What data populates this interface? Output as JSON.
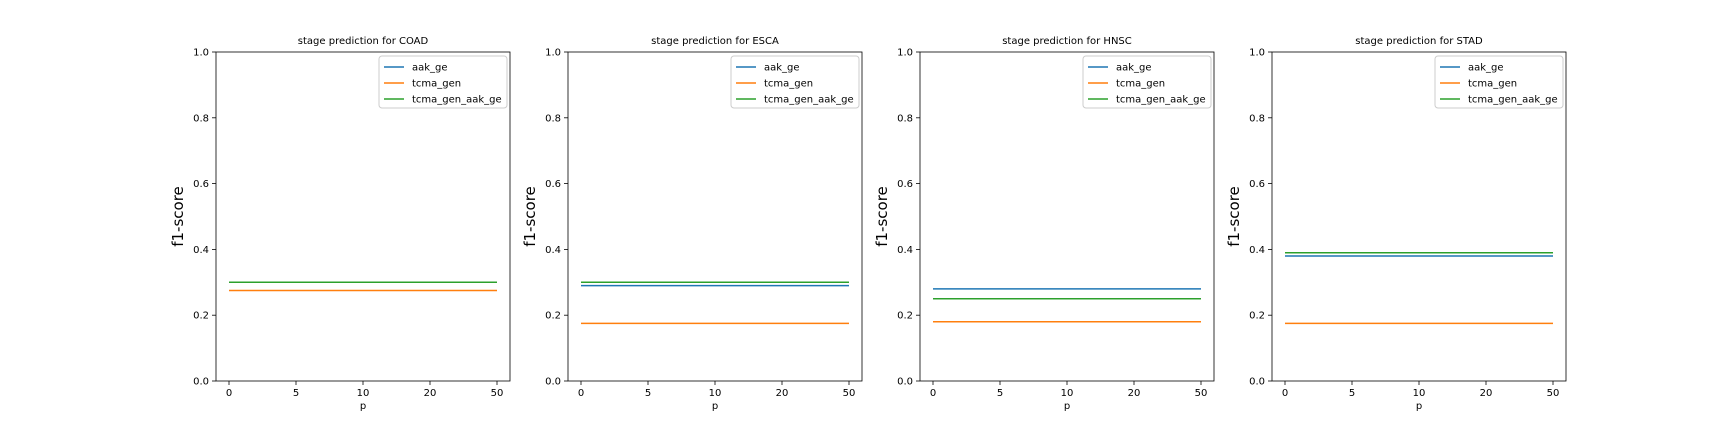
{
  "chart_data": [
    {
      "type": "line",
      "title": "stage prediction for COAD",
      "xlabel": "p",
      "ylabel": "f1-score",
      "x_ticks": [
        "0",
        "5",
        "10",
        "20",
        "50"
      ],
      "y_ticks": [
        "0.0",
        "0.2",
        "0.4",
        "0.6",
        "0.8",
        "1.0"
      ],
      "ylim": [
        0,
        1
      ],
      "grid": false,
      "legend": "top-right",
      "series": [
        {
          "name": "aak_ge",
          "color": "#1f77b4",
          "values": [
            0.3,
            0.3,
            0.3,
            0.3,
            0.3
          ]
        },
        {
          "name": "tcma_gen",
          "color": "#ff7f0e",
          "values": [
            0.275,
            0.275,
            0.275,
            0.275,
            0.275
          ]
        },
        {
          "name": "tcma_gen_aak_ge",
          "color": "#2ca02c",
          "values": [
            0.3,
            0.3,
            0.3,
            0.3,
            0.3
          ]
        }
      ]
    },
    {
      "type": "line",
      "title": "stage prediction for ESCA",
      "xlabel": "p",
      "ylabel": "f1-score",
      "x_ticks": [
        "0",
        "5",
        "10",
        "20",
        "50"
      ],
      "y_ticks": [
        "0.0",
        "0.2",
        "0.4",
        "0.6",
        "0.8",
        "1.0"
      ],
      "ylim": [
        0,
        1
      ],
      "grid": false,
      "legend": "top-right",
      "series": [
        {
          "name": "aak_ge",
          "color": "#1f77b4",
          "values": [
            0.29,
            0.29,
            0.29,
            0.29,
            0.29
          ]
        },
        {
          "name": "tcma_gen",
          "color": "#ff7f0e",
          "values": [
            0.175,
            0.175,
            0.175,
            0.175,
            0.175
          ]
        },
        {
          "name": "tcma_gen_aak_ge",
          "color": "#2ca02c",
          "values": [
            0.3,
            0.3,
            0.3,
            0.3,
            0.3
          ]
        }
      ]
    },
    {
      "type": "line",
      "title": "stage prediction for HNSC",
      "xlabel": "p",
      "ylabel": "f1-score",
      "x_ticks": [
        "0",
        "5",
        "10",
        "20",
        "50"
      ],
      "y_ticks": [
        "0.0",
        "0.2",
        "0.4",
        "0.6",
        "0.8",
        "1.0"
      ],
      "ylim": [
        0,
        1
      ],
      "grid": false,
      "legend": "top-right",
      "series": [
        {
          "name": "aak_ge",
          "color": "#1f77b4",
          "values": [
            0.28,
            0.28,
            0.28,
            0.28,
            0.28
          ]
        },
        {
          "name": "tcma_gen",
          "color": "#ff7f0e",
          "values": [
            0.18,
            0.18,
            0.18,
            0.18,
            0.18
          ]
        },
        {
          "name": "tcma_gen_aak_ge",
          "color": "#2ca02c",
          "values": [
            0.25,
            0.25,
            0.25,
            0.25,
            0.25
          ]
        }
      ]
    },
    {
      "type": "line",
      "title": "stage prediction for STAD",
      "xlabel": "p",
      "ylabel": "f1-score",
      "x_ticks": [
        "0",
        "5",
        "10",
        "20",
        "50"
      ],
      "y_ticks": [
        "0.0",
        "0.2",
        "0.4",
        "0.6",
        "0.8",
        "1.0"
      ],
      "ylim": [
        0,
        1
      ],
      "grid": false,
      "legend": "top-right",
      "series": [
        {
          "name": "aak_ge",
          "color": "#1f77b4",
          "values": [
            0.38,
            0.38,
            0.38,
            0.38,
            0.38
          ]
        },
        {
          "name": "tcma_gen",
          "color": "#ff7f0e",
          "values": [
            0.175,
            0.175,
            0.175,
            0.175,
            0.175
          ]
        },
        {
          "name": "tcma_gen_aak_ge",
          "color": "#2ca02c",
          "values": [
            0.39,
            0.39,
            0.39,
            0.39,
            0.39
          ]
        }
      ]
    }
  ]
}
